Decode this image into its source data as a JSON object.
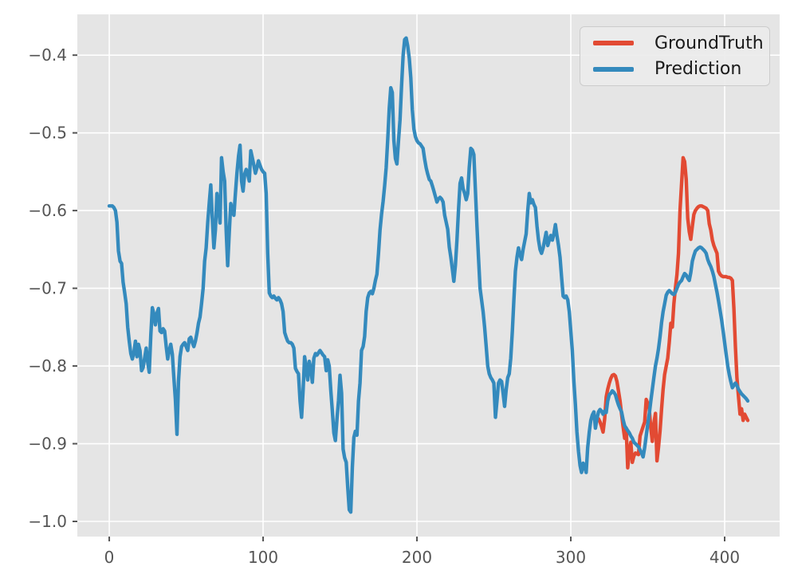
{
  "figure": {
    "background": "#ffffff"
  },
  "axes": {
    "background": "#e5e5e5",
    "grid_color": "#ffffff",
    "tick_color": "#555555",
    "tick_label_color": "#555555",
    "x_tick_labels": [
      "0",
      "100",
      "200",
      "300",
      "400"
    ],
    "y_tick_labels": [
      "−0.4",
      "−0.5",
      "−0.6",
      "−0.7",
      "−0.8",
      "−0.9",
      "−1.0"
    ]
  },
  "legend": {
    "position": "upper right",
    "entries": [
      {
        "label": "GroundTruth",
        "color": "#e24a33"
      },
      {
        "label": "Prediction",
        "color": "#348abd"
      }
    ]
  },
  "chart_data": {
    "type": "line",
    "title": "",
    "xlabel": "",
    "ylabel": "",
    "grid": true,
    "legend_position": "upper right",
    "xlim": [
      -20.75,
      435.75
    ],
    "ylim": [
      -1.0195,
      -0.3475
    ],
    "x_ticks": [
      0,
      100,
      200,
      300,
      400
    ],
    "y_ticks": [
      -0.4,
      -0.5,
      -0.6,
      -0.7,
      -0.8,
      -0.9,
      -1.0
    ],
    "series": [
      {
        "name": "GroundTruth",
        "color": "#e24a33",
        "x_start": 318,
        "x_step": 1,
        "values": [
          -0.868,
          -0.872,
          -0.878,
          -0.885,
          -0.868,
          -0.84,
          -0.83,
          -0.822,
          -0.816,
          -0.812,
          -0.811,
          -0.813,
          -0.82,
          -0.832,
          -0.845,
          -0.862,
          -0.878,
          -0.893,
          -0.88,
          -0.931,
          -0.91,
          -0.898,
          -0.924,
          -0.916,
          -0.912,
          -0.913,
          -0.914,
          -0.89,
          -0.884,
          -0.878,
          -0.872,
          -0.843,
          -0.848,
          -0.855,
          -0.88,
          -0.897,
          -0.874,
          -0.861,
          -0.922,
          -0.905,
          -0.883,
          -0.855,
          -0.83,
          -0.811,
          -0.8,
          -0.79,
          -0.77,
          -0.745,
          -0.75,
          -0.72,
          -0.7,
          -0.682,
          -0.655,
          -0.6,
          -0.565,
          -0.532,
          -0.537,
          -0.56,
          -0.61,
          -0.627,
          -0.637,
          -0.62,
          -0.605,
          -0.6,
          -0.597,
          -0.595,
          -0.594,
          -0.594,
          -0.595,
          -0.596,
          -0.597,
          -0.6,
          -0.617,
          -0.625,
          -0.638,
          -0.645,
          -0.65,
          -0.655,
          -0.678,
          -0.682,
          -0.684,
          -0.685,
          -0.685,
          -0.685,
          -0.686,
          -0.686,
          -0.687,
          -0.69,
          -0.726,
          -0.775,
          -0.815,
          -0.84,
          -0.862,
          -0.855,
          -0.87,
          -0.862,
          -0.866,
          -0.87
        ]
      },
      {
        "name": "Prediction",
        "color": "#348abd",
        "x_start": 0,
        "x_step": 1,
        "values": [
          -0.594,
          -0.594,
          -0.594,
          -0.596,
          -0.6,
          -0.615,
          -0.652,
          -0.665,
          -0.668,
          -0.692,
          -0.705,
          -0.72,
          -0.75,
          -0.768,
          -0.784,
          -0.791,
          -0.783,
          -0.768,
          -0.788,
          -0.772,
          -0.78,
          -0.806,
          -0.802,
          -0.79,
          -0.777,
          -0.795,
          -0.808,
          -0.76,
          -0.725,
          -0.733,
          -0.747,
          -0.732,
          -0.726,
          -0.755,
          -0.757,
          -0.752,
          -0.755,
          -0.775,
          -0.791,
          -0.78,
          -0.772,
          -0.785,
          -0.815,
          -0.843,
          -0.888,
          -0.82,
          -0.788,
          -0.775,
          -0.772,
          -0.77,
          -0.775,
          -0.78,
          -0.765,
          -0.763,
          -0.77,
          -0.775,
          -0.768,
          -0.758,
          -0.745,
          -0.737,
          -0.72,
          -0.7,
          -0.665,
          -0.648,
          -0.615,
          -0.59,
          -0.567,
          -0.61,
          -0.648,
          -0.625,
          -0.578,
          -0.595,
          -0.616,
          -0.532,
          -0.55,
          -0.562,
          -0.625,
          -0.671,
          -0.628,
          -0.591,
          -0.6,
          -0.606,
          -0.578,
          -0.552,
          -0.53,
          -0.516,
          -0.562,
          -0.575,
          -0.553,
          -0.547,
          -0.553,
          -0.562,
          -0.523,
          -0.532,
          -0.542,
          -0.552,
          -0.545,
          -0.536,
          -0.542,
          -0.547,
          -0.55,
          -0.552,
          -0.578,
          -0.655,
          -0.706,
          -0.71,
          -0.712,
          -0.71,
          -0.713,
          -0.715,
          -0.712,
          -0.715,
          -0.72,
          -0.73,
          -0.757,
          -0.763,
          -0.768,
          -0.77,
          -0.77,
          -0.772,
          -0.777,
          -0.803,
          -0.807,
          -0.81,
          -0.845,
          -0.866,
          -0.832,
          -0.788,
          -0.802,
          -0.818,
          -0.794,
          -0.803,
          -0.821,
          -0.79,
          -0.784,
          -0.786,
          -0.783,
          -0.78,
          -0.783,
          -0.786,
          -0.788,
          -0.806,
          -0.792,
          -0.8,
          -0.832,
          -0.858,
          -0.886,
          -0.896,
          -0.868,
          -0.845,
          -0.812,
          -0.835,
          -0.907,
          -0.918,
          -0.924,
          -0.956,
          -0.985,
          -0.988,
          -0.93,
          -0.892,
          -0.884,
          -0.889,
          -0.845,
          -0.822,
          -0.78,
          -0.775,
          -0.762,
          -0.73,
          -0.712,
          -0.706,
          -0.704,
          -0.707,
          -0.7,
          -0.69,
          -0.682,
          -0.655,
          -0.625,
          -0.605,
          -0.588,
          -0.568,
          -0.545,
          -0.508,
          -0.468,
          -0.442,
          -0.448,
          -0.51,
          -0.533,
          -0.54,
          -0.51,
          -0.483,
          -0.44,
          -0.4,
          -0.38,
          -0.378,
          -0.388,
          -0.404,
          -0.429,
          -0.47,
          -0.495,
          -0.505,
          -0.51,
          -0.513,
          -0.514,
          -0.517,
          -0.52,
          -0.534,
          -0.545,
          -0.553,
          -0.56,
          -0.562,
          -0.568,
          -0.575,
          -0.582,
          -0.589,
          -0.585,
          -0.583,
          -0.585,
          -0.589,
          -0.606,
          -0.615,
          -0.624,
          -0.647,
          -0.66,
          -0.675,
          -0.691,
          -0.67,
          -0.638,
          -0.6,
          -0.565,
          -0.558,
          -0.572,
          -0.578,
          -0.586,
          -0.578,
          -0.545,
          -0.52,
          -0.522,
          -0.528,
          -0.575,
          -0.62,
          -0.66,
          -0.7,
          -0.715,
          -0.73,
          -0.75,
          -0.775,
          -0.8,
          -0.81,
          -0.815,
          -0.818,
          -0.822,
          -0.866,
          -0.845,
          -0.822,
          -0.818,
          -0.82,
          -0.835,
          -0.852,
          -0.83,
          -0.815,
          -0.81,
          -0.79,
          -0.755,
          -0.715,
          -0.678,
          -0.66,
          -0.648,
          -0.657,
          -0.663,
          -0.65,
          -0.64,
          -0.63,
          -0.6,
          -0.578,
          -0.59,
          -0.586,
          -0.592,
          -0.596,
          -0.62,
          -0.638,
          -0.65,
          -0.655,
          -0.648,
          -0.638,
          -0.628,
          -0.645,
          -0.638,
          -0.632,
          -0.638,
          -0.63,
          -0.618,
          -0.632,
          -0.645,
          -0.66,
          -0.685,
          -0.71,
          -0.712,
          -0.71,
          -0.715,
          -0.73,
          -0.755,
          -0.78,
          -0.82,
          -0.85,
          -0.885,
          -0.91,
          -0.928,
          -0.937,
          -0.925,
          -0.93,
          -0.937,
          -0.905,
          -0.885,
          -0.87,
          -0.863,
          -0.859,
          -0.88,
          -0.868,
          -0.859,
          -0.856,
          -0.858,
          -0.862,
          -0.858,
          -0.86,
          -0.845,
          -0.837,
          -0.835,
          -0.832,
          -0.834,
          -0.837,
          -0.844,
          -0.85,
          -0.855,
          -0.859,
          -0.869,
          -0.877,
          -0.88,
          -0.883,
          -0.886,
          -0.89,
          -0.893,
          -0.898,
          -0.9,
          -0.902,
          -0.904,
          -0.908,
          -0.912,
          -0.917,
          -0.905,
          -0.89,
          -0.875,
          -0.862,
          -0.845,
          -0.83,
          -0.815,
          -0.8,
          -0.79,
          -0.778,
          -0.762,
          -0.744,
          -0.73,
          -0.72,
          -0.709,
          -0.705,
          -0.703,
          -0.705,
          -0.707,
          -0.708,
          -0.705,
          -0.7,
          -0.695,
          -0.692,
          -0.69,
          -0.685,
          -0.681,
          -0.683,
          -0.687,
          -0.69,
          -0.68,
          -0.665,
          -0.658,
          -0.652,
          -0.65,
          -0.648,
          -0.647,
          -0.648,
          -0.65,
          -0.652,
          -0.655,
          -0.663,
          -0.668,
          -0.672,
          -0.678,
          -0.685,
          -0.695,
          -0.705,
          -0.716,
          -0.728,
          -0.74,
          -0.755,
          -0.77,
          -0.785,
          -0.8,
          -0.811,
          -0.82,
          -0.828,
          -0.825,
          -0.822,
          -0.825,
          -0.83,
          -0.833,
          -0.836,
          -0.838,
          -0.84,
          -0.842,
          -0.845
        ]
      }
    ]
  }
}
